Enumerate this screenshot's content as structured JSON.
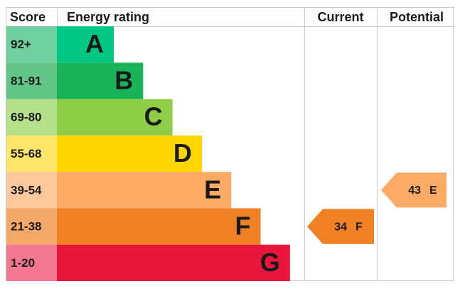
{
  "header": {
    "score": "Score",
    "rating": "Energy rating",
    "current": "Current",
    "potential": "Potential"
  },
  "bands": [
    {
      "score": "92+",
      "letter": "A",
      "color": "#00c781",
      "score_color": "#6fcf9f"
    },
    {
      "score": "81-91",
      "letter": "B",
      "color": "#19b459",
      "score_color": "#62c487"
    },
    {
      "score": "69-80",
      "letter": "C",
      "color": "#8dce46",
      "score_color": "#b4e08a"
    },
    {
      "score": "55-68",
      "letter": "D",
      "color": "#ffd500",
      "score_color": "#ffe66a"
    },
    {
      "score": "39-54",
      "letter": "E",
      "color": "#fcaa65",
      "score_color": "#fdc89b"
    },
    {
      "score": "21-38",
      "letter": "F",
      "color": "#ef8023",
      "score_color": "#f4a968"
    },
    {
      "score": "1-20",
      "letter": "G",
      "color": "#e9153b",
      "score_color": "#f27890"
    }
  ],
  "current": {
    "value": 34,
    "letter": "F"
  },
  "potential": {
    "value": 43,
    "letter": "E"
  }
}
